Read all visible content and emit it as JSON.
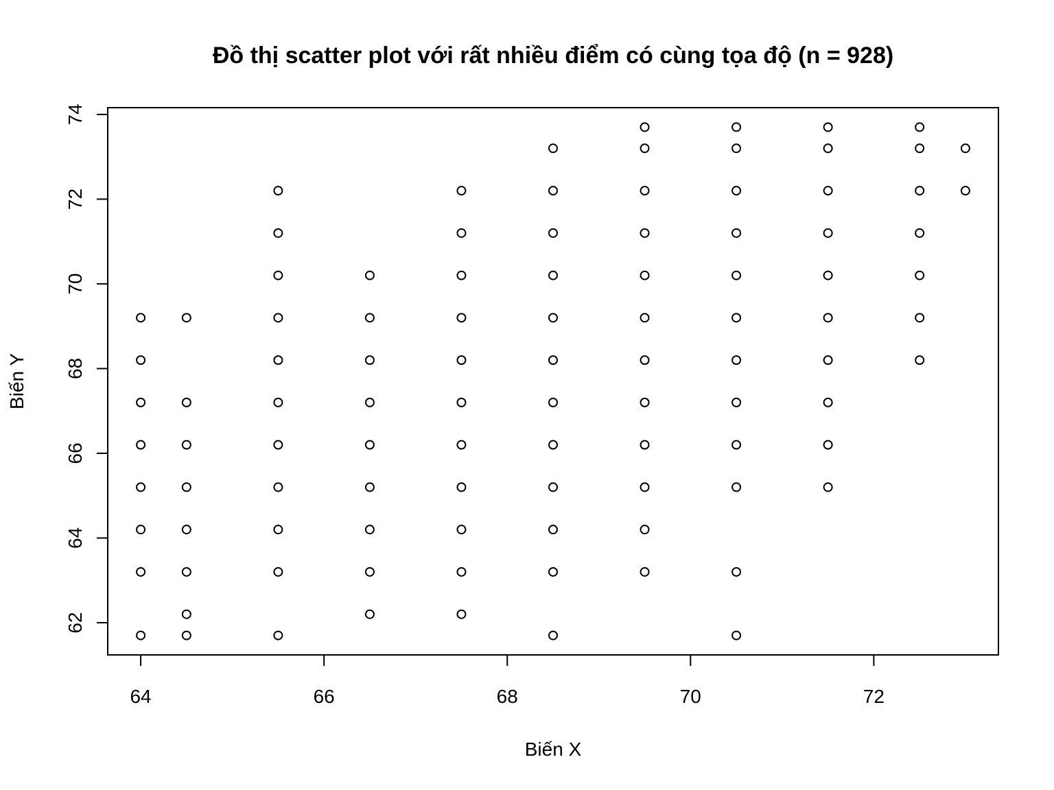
{
  "chart_data": {
    "type": "scatter",
    "title": "Đồ thị scatter plot với rất nhiều điểm có cùng tọa độ (n = 928)",
    "xlabel": "Biến X",
    "ylabel": "Biến Y",
    "xlim": [
      63.64,
      73.36
    ],
    "ylim": [
      61.24,
      74.16
    ],
    "xticks": [
      64,
      66,
      68,
      70,
      72
    ],
    "yticks": [
      62,
      64,
      66,
      68,
      70,
      72,
      74
    ],
    "grid": false,
    "legend": "none",
    "marker": "open-circle",
    "point_color": "#000000",
    "points": [
      {
        "x": 64,
        "y": 69.2
      },
      {
        "x": 64,
        "y": 68.2
      },
      {
        "x": 64,
        "y": 67.2
      },
      {
        "x": 64,
        "y": 66.2
      },
      {
        "x": 64,
        "y": 65.2
      },
      {
        "x": 64,
        "y": 64.2
      },
      {
        "x": 64,
        "y": 63.2
      },
      {
        "x": 64,
        "y": 61.7
      },
      {
        "x": 64.5,
        "y": 69.2
      },
      {
        "x": 64.5,
        "y": 67.2
      },
      {
        "x": 64.5,
        "y": 66.2
      },
      {
        "x": 64.5,
        "y": 65.2
      },
      {
        "x": 64.5,
        "y": 64.2
      },
      {
        "x": 64.5,
        "y": 63.2
      },
      {
        "x": 64.5,
        "y": 62.2
      },
      {
        "x": 64.5,
        "y": 61.7
      },
      {
        "x": 65.5,
        "y": 72.2
      },
      {
        "x": 65.5,
        "y": 71.2
      },
      {
        "x": 65.5,
        "y": 70.2
      },
      {
        "x": 65.5,
        "y": 69.2
      },
      {
        "x": 65.5,
        "y": 68.2
      },
      {
        "x": 65.5,
        "y": 67.2
      },
      {
        "x": 65.5,
        "y": 66.2
      },
      {
        "x": 65.5,
        "y": 65.2
      },
      {
        "x": 65.5,
        "y": 64.2
      },
      {
        "x": 65.5,
        "y": 63.2
      },
      {
        "x": 65.5,
        "y": 61.7
      },
      {
        "x": 66.5,
        "y": 70.2
      },
      {
        "x": 66.5,
        "y": 69.2
      },
      {
        "x": 66.5,
        "y": 68.2
      },
      {
        "x": 66.5,
        "y": 67.2
      },
      {
        "x": 66.5,
        "y": 66.2
      },
      {
        "x": 66.5,
        "y": 65.2
      },
      {
        "x": 66.5,
        "y": 64.2
      },
      {
        "x": 66.5,
        "y": 63.2
      },
      {
        "x": 66.5,
        "y": 62.2
      },
      {
        "x": 67.5,
        "y": 72.2
      },
      {
        "x": 67.5,
        "y": 71.2
      },
      {
        "x": 67.5,
        "y": 70.2
      },
      {
        "x": 67.5,
        "y": 69.2
      },
      {
        "x": 67.5,
        "y": 68.2
      },
      {
        "x": 67.5,
        "y": 67.2
      },
      {
        "x": 67.5,
        "y": 66.2
      },
      {
        "x": 67.5,
        "y": 65.2
      },
      {
        "x": 67.5,
        "y": 64.2
      },
      {
        "x": 67.5,
        "y": 63.2
      },
      {
        "x": 67.5,
        "y": 62.2
      },
      {
        "x": 68.5,
        "y": 73.2
      },
      {
        "x": 68.5,
        "y": 72.2
      },
      {
        "x": 68.5,
        "y": 71.2
      },
      {
        "x": 68.5,
        "y": 70.2
      },
      {
        "x": 68.5,
        "y": 69.2
      },
      {
        "x": 68.5,
        "y": 68.2
      },
      {
        "x": 68.5,
        "y": 67.2
      },
      {
        "x": 68.5,
        "y": 66.2
      },
      {
        "x": 68.5,
        "y": 65.2
      },
      {
        "x": 68.5,
        "y": 64.2
      },
      {
        "x": 68.5,
        "y": 63.2
      },
      {
        "x": 68.5,
        "y": 61.7
      },
      {
        "x": 69.5,
        "y": 73.7
      },
      {
        "x": 69.5,
        "y": 73.2
      },
      {
        "x": 69.5,
        "y": 72.2
      },
      {
        "x": 69.5,
        "y": 71.2
      },
      {
        "x": 69.5,
        "y": 70.2
      },
      {
        "x": 69.5,
        "y": 69.2
      },
      {
        "x": 69.5,
        "y": 68.2
      },
      {
        "x": 69.5,
        "y": 67.2
      },
      {
        "x": 69.5,
        "y": 66.2
      },
      {
        "x": 69.5,
        "y": 65.2
      },
      {
        "x": 69.5,
        "y": 64.2
      },
      {
        "x": 69.5,
        "y": 63.2
      },
      {
        "x": 70.5,
        "y": 73.7
      },
      {
        "x": 70.5,
        "y": 73.2
      },
      {
        "x": 70.5,
        "y": 72.2
      },
      {
        "x": 70.5,
        "y": 71.2
      },
      {
        "x": 70.5,
        "y": 70.2
      },
      {
        "x": 70.5,
        "y": 69.2
      },
      {
        "x": 70.5,
        "y": 68.2
      },
      {
        "x": 70.5,
        "y": 67.2
      },
      {
        "x": 70.5,
        "y": 66.2
      },
      {
        "x": 70.5,
        "y": 65.2
      },
      {
        "x": 70.5,
        "y": 63.2
      },
      {
        "x": 70.5,
        "y": 61.7
      },
      {
        "x": 71.5,
        "y": 73.7
      },
      {
        "x": 71.5,
        "y": 73.2
      },
      {
        "x": 71.5,
        "y": 72.2
      },
      {
        "x": 71.5,
        "y": 71.2
      },
      {
        "x": 71.5,
        "y": 70.2
      },
      {
        "x": 71.5,
        "y": 69.2
      },
      {
        "x": 71.5,
        "y": 68.2
      },
      {
        "x": 71.5,
        "y": 67.2
      },
      {
        "x": 71.5,
        "y": 66.2
      },
      {
        "x": 71.5,
        "y": 65.2
      },
      {
        "x": 72.5,
        "y": 73.7
      },
      {
        "x": 72.5,
        "y": 73.2
      },
      {
        "x": 72.5,
        "y": 72.2
      },
      {
        "x": 72.5,
        "y": 71.2
      },
      {
        "x": 72.5,
        "y": 70.2
      },
      {
        "x": 72.5,
        "y": 69.2
      },
      {
        "x": 72.5,
        "y": 68.2
      },
      {
        "x": 73,
        "y": 73.2
      },
      {
        "x": 73,
        "y": 72.2
      }
    ]
  }
}
